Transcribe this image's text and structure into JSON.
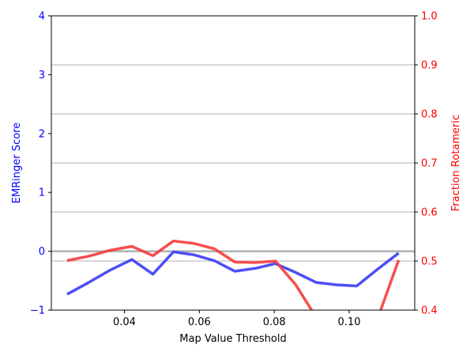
{
  "chart_data": {
    "type": "line",
    "title": "",
    "xlabel": "Map Value Threshold",
    "ylabel_left": "EMRinger Score",
    "ylabel_right": "Fraction Rotameric",
    "xlim": [
      0.0205,
      0.1175
    ],
    "ylim_left": [
      -1,
      4
    ],
    "ylim_right": [
      0.4,
      1.0
    ],
    "xticks": [
      0.04,
      0.06,
      0.08,
      0.1
    ],
    "xtick_labels": [
      "0.04",
      "0.06",
      "0.08",
      "0.10"
    ],
    "yticks_left": [
      -1,
      0,
      1,
      2,
      3,
      4
    ],
    "ytick_labels_left": [
      "−1",
      "0",
      "1",
      "2",
      "3",
      "4"
    ],
    "yticks_right": [
      0.4,
      0.5,
      0.6,
      0.7,
      0.8,
      0.9,
      1.0
    ],
    "ytick_labels_right": [
      "0.4",
      "0.5",
      "0.6",
      "0.7",
      "0.8",
      "0.9",
      "1.0"
    ],
    "grid": "horizontal lines at right-axis ticks",
    "zero_line": true,
    "left_axis_color": "#0000ff",
    "right_axis_color": "#ff0000",
    "series": [
      {
        "axis": "left",
        "color": "#3b3bf5",
        "x": [
          0.0247,
          0.0305,
          0.0362,
          0.042,
          0.0476,
          0.0531,
          0.0585,
          0.064,
          0.0695,
          0.075,
          0.0803,
          0.0857,
          0.0912,
          0.0965,
          0.102,
          0.1077,
          0.1132
        ],
        "values": [
          -0.73,
          -0.53,
          -0.32,
          -0.14,
          -0.39,
          -0.01,
          -0.06,
          -0.16,
          -0.34,
          -0.29,
          -0.21,
          -0.36,
          -0.53,
          -0.57,
          -0.59,
          -0.3,
          -0.03
        ]
      },
      {
        "axis": "right",
        "color": "#f53b3b",
        "x": [
          0.0247,
          0.0305,
          0.0362,
          0.042,
          0.0476,
          0.0531,
          0.0585,
          0.064,
          0.0695,
          0.075,
          0.0803,
          0.0857,
          0.0912,
          0.0965,
          0.102,
          0.1077,
          0.1132
        ],
        "values": [
          0.501,
          0.51,
          0.522,
          0.53,
          0.511,
          0.541,
          0.536,
          0.525,
          0.498,
          0.497,
          0.5,
          0.452,
          0.385,
          0.385,
          0.385,
          0.385,
          0.502
        ]
      }
    ]
  }
}
